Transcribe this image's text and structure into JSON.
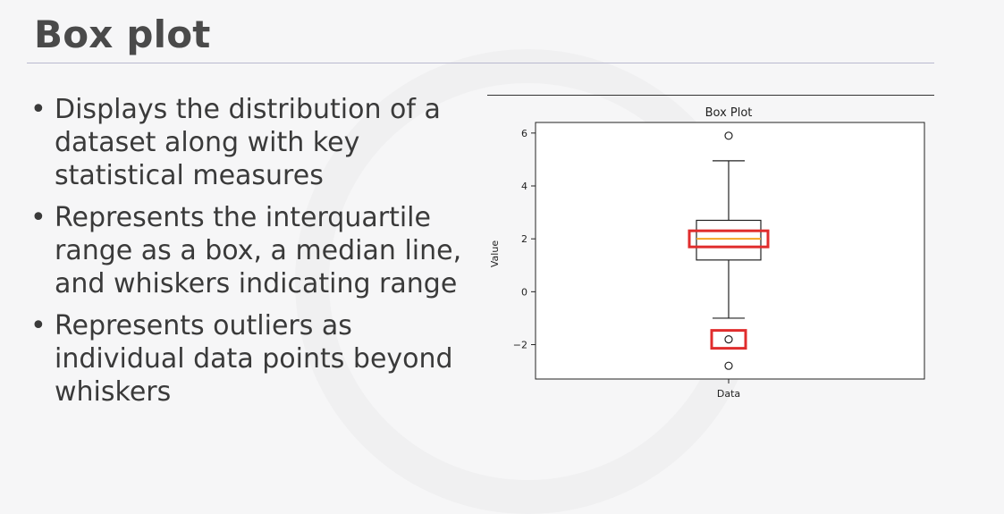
{
  "slide": {
    "title": "Box plot",
    "bullets": [
      [
        "Displays the distribution of a",
        "dataset along with key",
        "statistical measures"
      ],
      [
        "Represents the interquartile",
        "range as a box, a median line,",
        "and whiskers indicating range"
      ],
      [
        "Represents outliers as",
        "individual data points beyond",
        "whiskers"
      ]
    ]
  },
  "highlight_color": "#e02d2d",
  "chart_data": {
    "type": "box",
    "title": "Box Plot",
    "xlabel": "Data",
    "ylabel": "Value",
    "categories": [
      "Data"
    ],
    "ylim": [
      -3.3,
      6.4
    ],
    "yticks": [
      6,
      4,
      2,
      0,
      -2
    ],
    "ytick_labels": [
      "6",
      "4",
      "2",
      "0",
      "−2"
    ],
    "box": {
      "whisker_low": -1.0,
      "q1": 1.2,
      "median": 2.0,
      "q3": 2.7,
      "whisker_high": 4.95
    },
    "outliers": [
      5.9,
      -1.8,
      -2.8
    ],
    "median_color": "#f5a623",
    "highlights": [
      "median",
      "outlier:-1.8"
    ],
    "grid": false
  }
}
